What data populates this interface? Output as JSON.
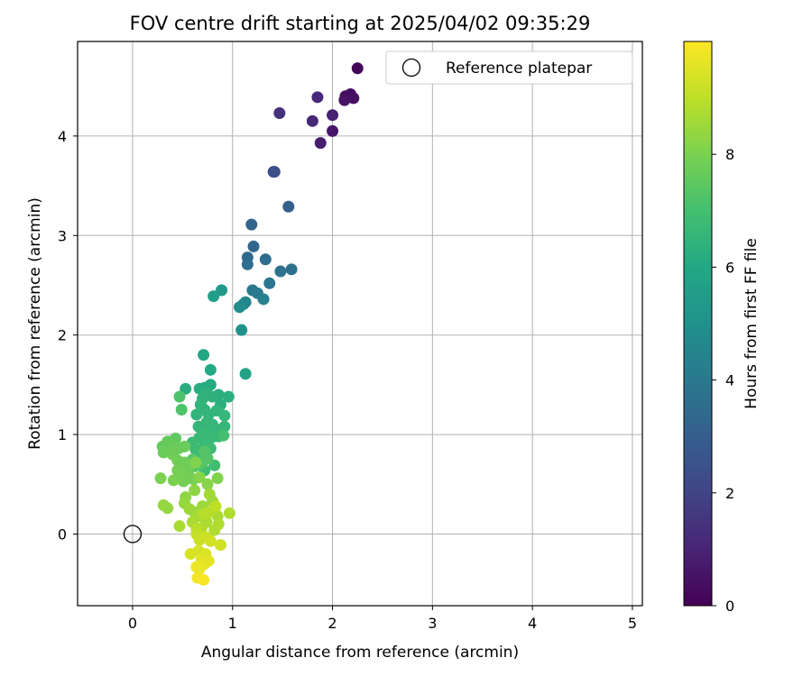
{
  "chart_data": {
    "type": "scatter",
    "title": "FOV centre drift starting at 2025/04/02 09:35:29",
    "xlabel": "Angular distance from reference (arcmin)",
    "ylabel": "Rotation from reference (arcmin)",
    "xlim": [
      -0.55,
      5.1
    ],
    "ylim": [
      -0.72,
      4.95
    ],
    "xticks": [
      0,
      1,
      2,
      3,
      4,
      5
    ],
    "yticks": [
      0,
      1,
      2,
      3,
      4
    ],
    "grid": true,
    "colormap": "viridis",
    "colorbar": {
      "label": "Hours from first FF file",
      "range": [
        0,
        10
      ],
      "ticks": [
        0,
        2,
        4,
        6,
        8
      ]
    },
    "legend": {
      "location": "top-right",
      "entries": [
        {
          "label": "Reference platepar",
          "marker": "open-circle"
        }
      ]
    },
    "reference_point": {
      "x": 0,
      "y": 0
    },
    "series": [
      {
        "points": [
          [
            2.25,
            4.68,
            0.1
          ],
          [
            2.13,
            4.4,
            0.3
          ],
          [
            2.18,
            4.42,
            0.35
          ],
          [
            2.21,
            4.38,
            0.4
          ],
          [
            2.12,
            4.36,
            0.5
          ],
          [
            2.0,
            4.05,
            0.6
          ],
          [
            1.88,
            3.93,
            0.8
          ],
          [
            2.0,
            4.21,
            0.9
          ],
          [
            1.8,
            4.15,
            1.1
          ],
          [
            1.85,
            4.39,
            1.2
          ],
          [
            1.47,
            4.23,
            1.4
          ],
          [
            1.41,
            3.64,
            2.3
          ],
          [
            1.42,
            3.64,
            2.4
          ],
          [
            1.56,
            3.29,
            3.0
          ],
          [
            1.19,
            3.11,
            3.2
          ],
          [
            1.21,
            2.89,
            3.3
          ],
          [
            1.15,
            2.78,
            3.4
          ],
          [
            1.33,
            2.76,
            3.5
          ],
          [
            1.15,
            2.71,
            3.6
          ],
          [
            1.59,
            2.66,
            3.7
          ],
          [
            1.48,
            2.64,
            3.8
          ],
          [
            1.37,
            2.52,
            3.9
          ],
          [
            1.2,
            2.45,
            4.0
          ],
          [
            1.25,
            2.42,
            4.1
          ],
          [
            1.31,
            2.36,
            4.3
          ],
          [
            1.13,
            2.33,
            4.5
          ],
          [
            1.11,
            2.31,
            4.6
          ],
          [
            1.07,
            2.28,
            4.8
          ],
          [
            1.09,
            2.05,
            5.0
          ],
          [
            0.89,
            2.45,
            5.3
          ],
          [
            0.81,
            2.39,
            5.5
          ],
          [
            1.13,
            1.61,
            5.7
          ],
          [
            0.71,
            1.8,
            5.9
          ],
          [
            0.78,
            1.65,
            6.0
          ],
          [
            0.72,
            1.47,
            6.1
          ],
          [
            0.78,
            1.5,
            6.1
          ],
          [
            0.53,
            1.46,
            6.2
          ],
          [
            0.67,
            1.46,
            6.2
          ],
          [
            0.86,
            1.4,
            6.3
          ],
          [
            0.96,
            1.38,
            6.3
          ],
          [
            0.88,
            1.3,
            6.3
          ],
          [
            0.8,
            1.38,
            6.4
          ],
          [
            0.74,
            1.42,
            6.4
          ],
          [
            0.7,
            1.36,
            6.4
          ],
          [
            0.68,
            1.3,
            6.5
          ],
          [
            0.72,
            1.25,
            6.5
          ],
          [
            0.64,
            1.2,
            6.5
          ],
          [
            0.76,
            1.2,
            6.5
          ],
          [
            0.84,
            1.24,
            6.5
          ],
          [
            0.92,
            1.19,
            6.6
          ],
          [
            0.8,
            1.1,
            6.6
          ],
          [
            0.74,
            1.12,
            6.6
          ],
          [
            0.66,
            1.08,
            6.6
          ],
          [
            0.84,
            1.05,
            6.6
          ],
          [
            0.92,
            1.08,
            6.6
          ],
          [
            0.73,
            1.02,
            6.7
          ],
          [
            0.79,
            0.97,
            6.7
          ],
          [
            0.86,
            0.98,
            6.7
          ],
          [
            0.67,
            0.97,
            6.7
          ],
          [
            0.72,
            0.91,
            6.7
          ],
          [
            0.6,
            0.92,
            6.8
          ],
          [
            0.78,
            0.86,
            6.8
          ],
          [
            0.63,
            0.85,
            6.8
          ],
          [
            0.69,
            0.8,
            6.8
          ],
          [
            0.72,
            0.77,
            6.8
          ],
          [
            0.82,
            0.69,
            6.9
          ],
          [
            0.72,
            0.64,
            6.9
          ],
          [
            0.91,
            0.99,
            7.0
          ],
          [
            0.47,
            1.38,
            7.2
          ],
          [
            0.49,
            1.25,
            7.2
          ],
          [
            0.62,
            0.68,
            7.2
          ],
          [
            0.72,
            0.83,
            7.3
          ],
          [
            0.75,
            0.76,
            7.3
          ],
          [
            0.7,
            0.72,
            7.3
          ],
          [
            0.66,
            0.7,
            7.4
          ],
          [
            0.6,
            0.75,
            7.4
          ],
          [
            0.43,
            0.96,
            7.5
          ],
          [
            0.35,
            0.93,
            7.6
          ],
          [
            0.3,
            0.88,
            7.6
          ],
          [
            0.41,
            0.88,
            7.7
          ],
          [
            0.46,
            0.86,
            7.7
          ],
          [
            0.52,
            0.88,
            7.7
          ],
          [
            0.31,
            0.82,
            7.7
          ],
          [
            0.4,
            0.8,
            7.8
          ],
          [
            0.45,
            0.74,
            7.8
          ],
          [
            0.52,
            0.72,
            7.8
          ],
          [
            0.56,
            0.64,
            7.8
          ],
          [
            0.45,
            0.64,
            7.9
          ],
          [
            0.48,
            0.58,
            7.9
          ],
          [
            0.55,
            0.56,
            7.9
          ],
          [
            0.51,
            0.53,
            7.9
          ],
          [
            0.61,
            0.55,
            7.9
          ],
          [
            0.41,
            0.54,
            8.0
          ],
          [
            0.28,
            0.56,
            8.0
          ],
          [
            0.63,
            0.72,
            8.1
          ],
          [
            0.85,
            0.56,
            8.1
          ],
          [
            0.67,
            0.57,
            8.2
          ],
          [
            0.75,
            0.5,
            8.2
          ],
          [
            0.62,
            0.44,
            8.3
          ],
          [
            0.53,
            0.37,
            8.3
          ],
          [
            0.31,
            0.29,
            8.4
          ],
          [
            0.35,
            0.26,
            8.4
          ],
          [
            0.52,
            0.31,
            8.4
          ],
          [
            0.57,
            0.25,
            8.5
          ],
          [
            0.62,
            0.22,
            8.5
          ],
          [
            0.7,
            0.28,
            8.5
          ],
          [
            0.8,
            0.33,
            8.5
          ],
          [
            0.77,
            0.4,
            8.6
          ],
          [
            0.82,
            0.25,
            8.6
          ],
          [
            0.66,
            0.18,
            8.6
          ],
          [
            0.85,
            0.18,
            8.7
          ],
          [
            0.74,
            0.12,
            8.7
          ],
          [
            0.6,
            0.12,
            8.7
          ],
          [
            0.47,
            0.08,
            8.7
          ],
          [
            0.69,
            0.06,
            8.8
          ],
          [
            0.82,
            0.04,
            8.8
          ],
          [
            0.86,
            0.1,
            8.8
          ],
          [
            0.97,
            0.21,
            8.8
          ],
          [
            0.64,
            0.05,
            8.9
          ],
          [
            0.71,
            0.2,
            8.9
          ],
          [
            0.76,
            0.22,
            8.9
          ],
          [
            0.83,
            0.28,
            9.0
          ],
          [
            0.64,
            0.0,
            9.1
          ],
          [
            0.73,
            -0.03,
            9.2
          ],
          [
            0.67,
            -0.06,
            9.2
          ],
          [
            0.78,
            -0.07,
            9.3
          ],
          [
            0.88,
            -0.11,
            9.3
          ],
          [
            0.58,
            -0.2,
            9.4
          ],
          [
            0.66,
            -0.17,
            9.4
          ],
          [
            0.73,
            -0.2,
            9.5
          ],
          [
            0.69,
            -0.25,
            9.5
          ],
          [
            0.76,
            -0.27,
            9.6
          ],
          [
            0.72,
            -0.3,
            9.6
          ],
          [
            0.64,
            -0.33,
            9.7
          ],
          [
            0.67,
            -0.35,
            9.7
          ],
          [
            0.65,
            -0.44,
            9.8
          ],
          [
            0.71,
            -0.46,
            9.9
          ]
        ]
      }
    ]
  }
}
